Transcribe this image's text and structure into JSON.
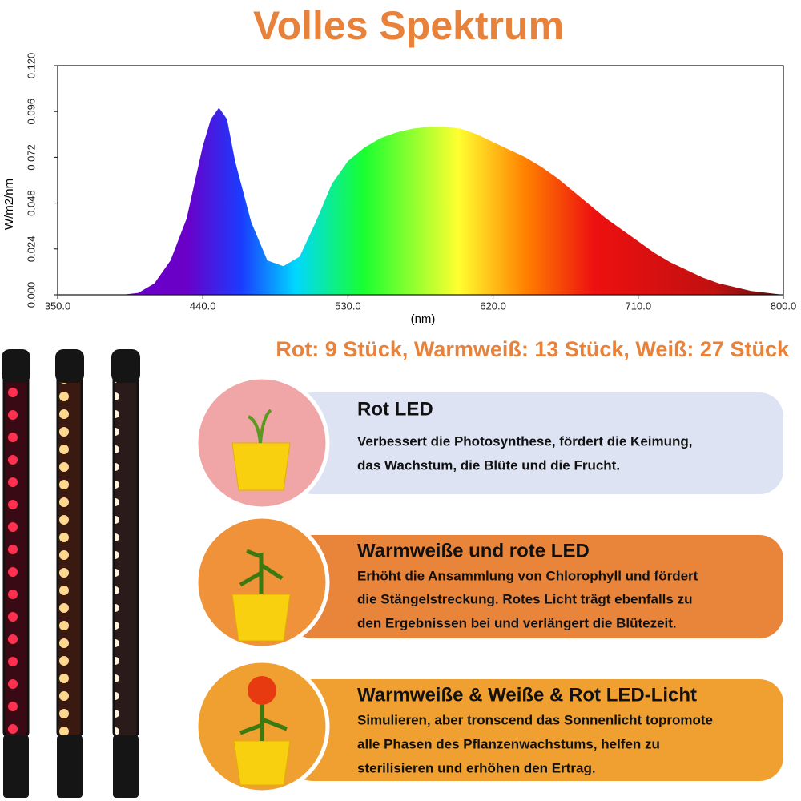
{
  "chart_data": {
    "type": "area",
    "title": "Volles Spektrum",
    "ylabel": "W/m2/nm",
    "xlabel": "(nm)",
    "x": [
      380,
      390,
      400,
      410,
      420,
      430,
      440,
      445,
      450,
      455,
      460,
      470,
      480,
      490,
      500,
      510,
      520,
      530,
      540,
      550,
      560,
      570,
      580,
      590,
      600,
      610,
      620,
      630,
      640,
      650,
      660,
      670,
      680,
      690,
      700,
      710,
      720,
      730,
      740,
      750,
      760,
      770,
      780,
      790,
      800
    ],
    "values": [
      0,
      0,
      0.001,
      0.006,
      0.018,
      0.04,
      0.078,
      0.092,
      0.098,
      0.092,
      0.07,
      0.038,
      0.018,
      0.015,
      0.02,
      0.038,
      0.058,
      0.07,
      0.077,
      0.082,
      0.085,
      0.087,
      0.088,
      0.088,
      0.087,
      0.084,
      0.08,
      0.076,
      0.072,
      0.067,
      0.061,
      0.054,
      0.047,
      0.04,
      0.034,
      0.028,
      0.022,
      0.017,
      0.013,
      0.009,
      0.006,
      0.004,
      0.002,
      0.001,
      0
    ],
    "xlim": [
      350,
      800
    ],
    "xticks": [
      {
        "value": 350,
        "label": "350.0"
      },
      {
        "value": 440,
        "label": "440.0"
      },
      {
        "value": 530,
        "label": "530.0"
      },
      {
        "value": 620,
        "label": "620.0"
      },
      {
        "value": 710,
        "label": "710.0"
      },
      {
        "value": 800,
        "label": "800.0"
      }
    ],
    "ylim": [
      0,
      0.12
    ],
    "yticks": [
      {
        "value": 0,
        "label": "0.000"
      },
      0.024,
      0.048,
      0.072,
      0.096,
      {
        "value": 0.12,
        "label": "0.120"
      }
    ],
    "grid": false
  },
  "subtitle": "Rot: 9 Stück, Warmweiß: 13 Stück, Weiß: 27 Stück",
  "cards": [
    {
      "title": "Rot LED",
      "lines": [
        "Verbessert die Photosynthese, fördert die Keimung,",
        "das Wachstum, die Blüte und die Frucht."
      ]
    },
    {
      "title": "Warmweiße und rote LED",
      "lines": [
        "Erhöht die Ansammlung von Chlorophyll und fördert",
        "die Stängelstreckung. Rotes Licht trägt ebenfalls zu",
        "den Ergebnissen bei und verlängert die Blütezeit."
      ]
    },
    {
      "title": "Warmweiße & Weiße & Rot LED-Licht",
      "lines": [
        "Simulieren, aber tronscend das Sonnenlicht topromote",
        "alle Phasen des Pflanzenwachstums, helfen zu",
        "sterilisieren und erhöhen den Ertrag."
      ]
    }
  ]
}
